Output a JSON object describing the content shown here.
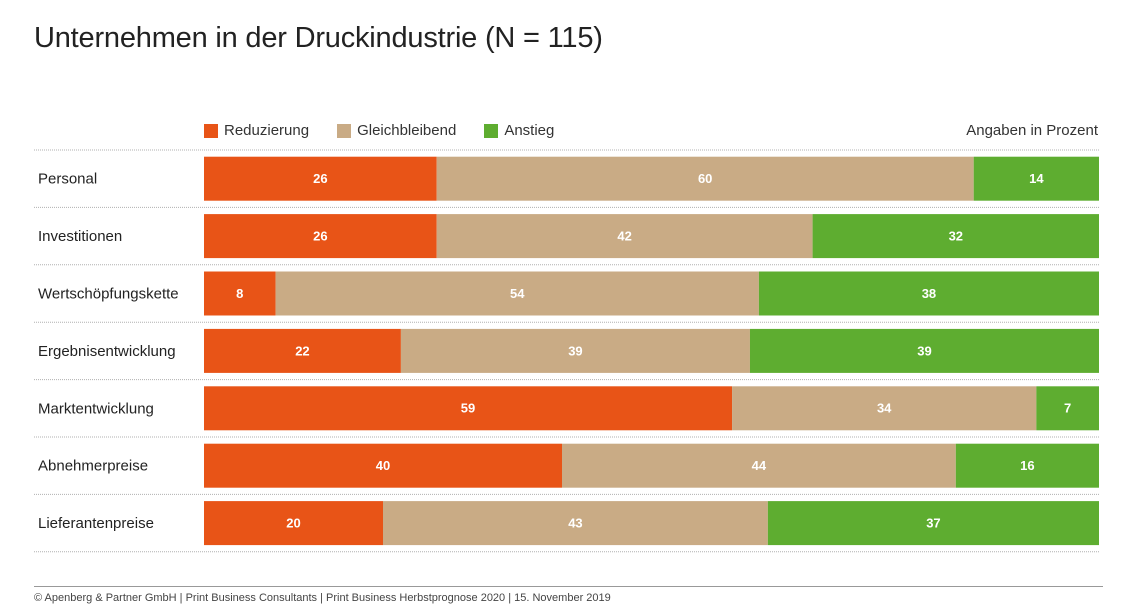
{
  "title": "Unternehmen in der Druckindustrie (N = 115)",
  "unit_note": "Angaben in Prozent",
  "footer": "© Apenberg & Partner GmbH  |  Print Business Consultants  |  Print Business Herbstprognose  2020  |  15. November  2019",
  "chart_data": {
    "type": "bar",
    "orientation": "horizontal",
    "stacked": true,
    "categories": [
      "Personal",
      "Investitionen",
      "Wertschöpfungskette",
      "Ergebnisentwicklung",
      "Marktentwicklung",
      "Abnehmerpreise",
      "Lieferantenpreise"
    ],
    "series": [
      {
        "name": "Reduzierung",
        "color": "#e85417",
        "values": [
          26,
          26,
          8,
          22,
          59,
          40,
          20
        ]
      },
      {
        "name": "Gleichbleibend",
        "color": "#c9ab85",
        "values": [
          60,
          42,
          54,
          39,
          34,
          44,
          43
        ]
      },
      {
        "name": "Anstieg",
        "color": "#5ead30",
        "values": [
          14,
          32,
          38,
          39,
          7,
          16,
          37
        ]
      }
    ],
    "xlim": [
      0,
      100
    ],
    "legend_position": "top-left",
    "grid": false
  }
}
